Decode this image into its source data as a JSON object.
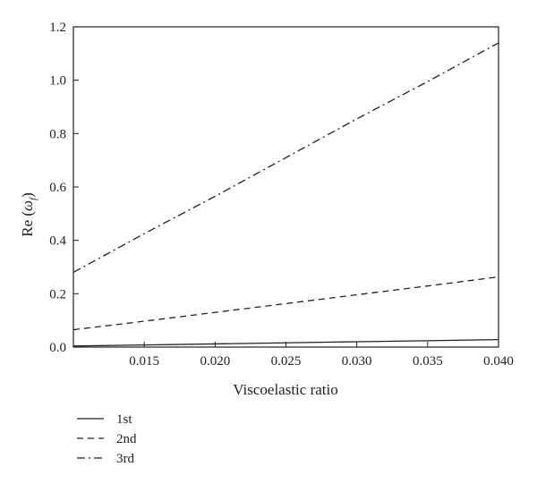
{
  "chart_data": {
    "type": "line",
    "xlabel": "Viscoelastic ratio",
    "ylabel": "Re (ω_f)",
    "ylabel_main": "Re (",
    "ylabel_symbol": "ω",
    "ylabel_subscript": "f",
    "ylabel_close": ")",
    "xlim": [
      0.01,
      0.04
    ],
    "ylim": [
      0.0,
      1.2
    ],
    "x_ticks": [
      0.015,
      0.02,
      0.025,
      0.03,
      0.035,
      0.04
    ],
    "x_tick_labels": [
      "0.015",
      "0.020",
      "0.025",
      "0.030",
      "0.035",
      "0.040"
    ],
    "y_ticks": [
      0.0,
      0.2,
      0.4,
      0.6,
      0.8,
      1.0,
      1.2
    ],
    "y_tick_labels": [
      "0.0",
      "0.2",
      "0.4",
      "0.6",
      "0.8",
      "1.0",
      "1.2"
    ],
    "grid": false,
    "legend_position": "bottom-left, below plot",
    "x": [
      0.01,
      0.015,
      0.02,
      0.025,
      0.03,
      0.035,
      0.04
    ],
    "series": [
      {
        "name": "1st",
        "style": "solid",
        "color": "#222222",
        "values": [
          0.004,
          0.008,
          0.012,
          0.016,
          0.02,
          0.024,
          0.028
        ]
      },
      {
        "name": "2nd",
        "style": "dashed",
        "color": "#222222",
        "values": [
          0.065,
          0.097,
          0.13,
          0.163,
          0.196,
          0.229,
          0.263
        ]
      },
      {
        "name": "3rd",
        "style": "dashdot",
        "color": "#222222",
        "values": [
          0.28,
          0.425,
          0.565,
          0.71,
          0.855,
          0.995,
          1.14
        ]
      }
    ]
  }
}
